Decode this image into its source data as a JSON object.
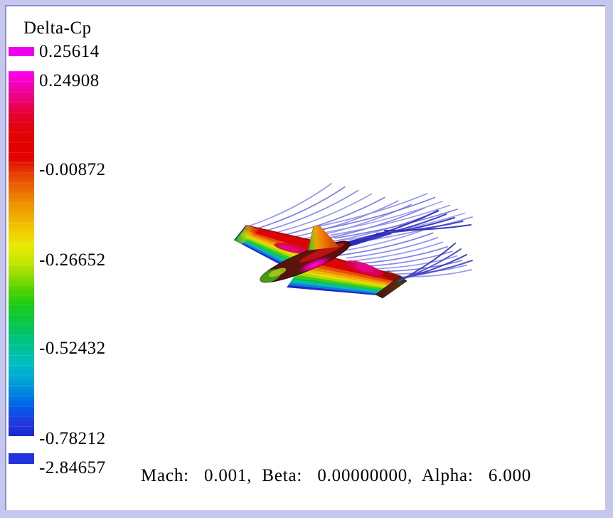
{
  "window": {
    "frame_color": "#c6c6ee",
    "bevel_color": "#8b8bcb",
    "background": "#ffffff"
  },
  "legend": {
    "title": "Delta-Cp",
    "max_clip": {
      "label": "0.25614",
      "color": "#ee00ee"
    },
    "scale_top_label": "0.24908",
    "ticks": [
      {
        "label": "-0.00872"
      },
      {
        "label": "-0.26652"
      },
      {
        "label": "-0.52432"
      },
      {
        "label": "-0.78212"
      }
    ],
    "min_clip": {
      "label": "-2.84657",
      "color": "#2233dd"
    }
  },
  "status_bar": {
    "text": "Mach:   0.001,  Beta:   0.00000000,  Alpha:   6.000"
  },
  "scene": {
    "wake_color": "#8888e8",
    "wake_dark_color": "#2b2bb6"
  },
  "chart_data": {
    "type": "heatmap",
    "title": "Delta-Cp",
    "legend_position": "left",
    "colorbar": {
      "clip_max": 0.25614,
      "scale_max": 0.24908,
      "tick_values": [
        -0.00872,
        -0.26652,
        -0.52432,
        -0.78212
      ],
      "clip_min": -2.84657,
      "colors_top_to_bottom": [
        "#ff00f0",
        "#ee0000",
        "#ff8800",
        "#ffee00",
        "#22cc22",
        "#00c4a0",
        "#0077ee",
        "#2230dd"
      ]
    },
    "flow_conditions": {
      "mach": 0.001,
      "beta": 0.0,
      "alpha": 6.0
    },
    "annotations": [
      "Mach:   0.001,  Beta:   0.00000000,  Alpha:   6.000"
    ],
    "scene_description": "3D aircraft surface (wing-body-tail) colored by Delta-Cp with trailing wake filaments"
  }
}
